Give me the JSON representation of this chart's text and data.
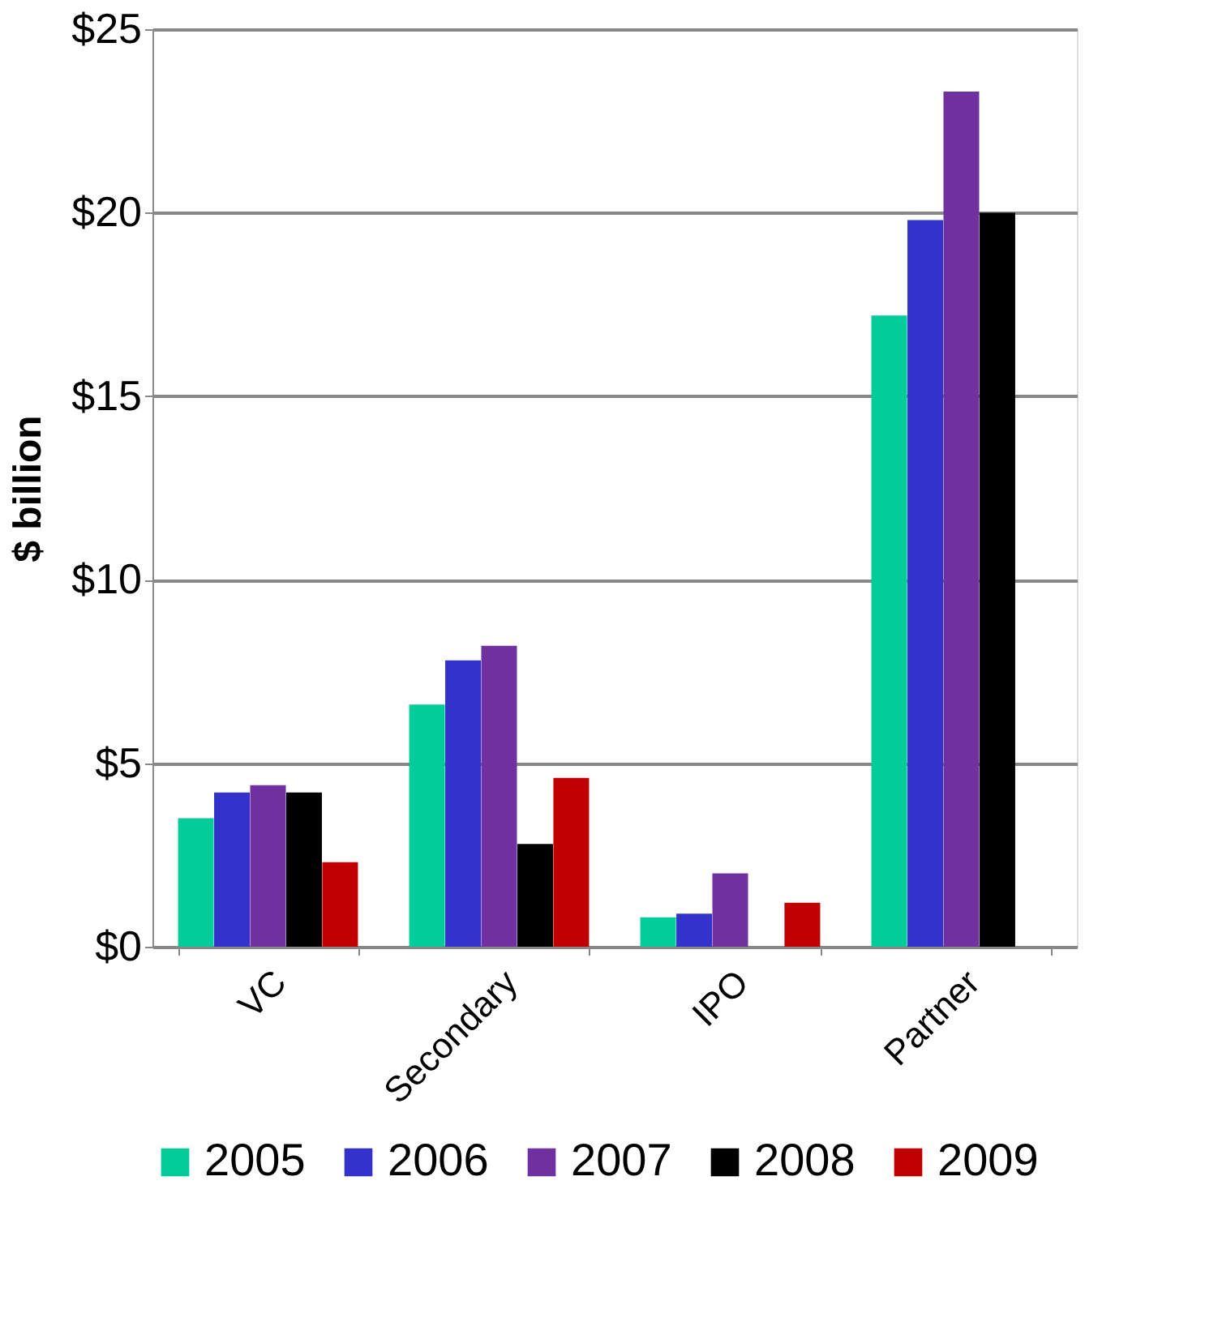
{
  "chart_data": {
    "type": "bar",
    "ylabel": "$ billion",
    "categories": [
      "VC",
      "Secondary",
      "IPO",
      "Partner"
    ],
    "series": [
      {
        "name": "2005",
        "color": "#00cc99",
        "values": [
          3.5,
          6.6,
          0.8,
          17.2
        ]
      },
      {
        "name": "2006",
        "color": "#3333cc",
        "values": [
          4.2,
          7.8,
          0.9,
          19.8
        ]
      },
      {
        "name": "2007",
        "color": "#7030a0",
        "values": [
          4.4,
          8.2,
          2.0,
          23.3
        ]
      },
      {
        "name": "2008",
        "color": "#000000",
        "values": [
          4.2,
          2.8,
          null,
          20.0
        ]
      },
      {
        "name": "2009",
        "color": "#c00000",
        "values": [
          2.3,
          4.6,
          1.2,
          null
        ]
      }
    ],
    "ylim": [
      0,
      25
    ],
    "yticks": [
      {
        "value": 0,
        "label": "$0"
      },
      {
        "value": 5,
        "label": "$5"
      },
      {
        "value": 10,
        "label": "$10"
      },
      {
        "value": 15,
        "label": "$15"
      },
      {
        "value": 20,
        "label": "$20"
      },
      {
        "value": 25,
        "label": "$25"
      }
    ],
    "grid": "y",
    "legend": "bottom"
  }
}
